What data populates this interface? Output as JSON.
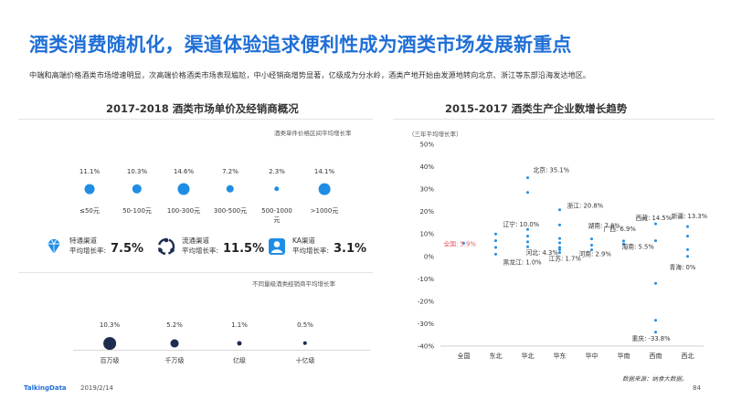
{
  "title": "酒类消费随机化，渠道体验追求便利性成为酒类市场发展新重点",
  "subtitle": "中端和高端价格酒类市场增速明显，次高端价格酒类市场表现尴尬，中小经销商增势显著，亿级成为分水岭，酒类产地开始由发源地转向北京、浙江等东部沿海发达地区。",
  "left_panel": {
    "title": "2017-2018  酒类市场单价及经销商概况",
    "price_label": "酒类单件价格区间平均增长率",
    "dealer_label": "不同量级酒类经销商平均增长率"
  },
  "channels": [
    {
      "name": "特通渠道",
      "rate_label": "平均增长率:",
      "rate": "7.5%",
      "icon": "diamond-icon",
      "color": "#1f8de6"
    },
    {
      "name": "流通渠道",
      "rate_label": "平均增长率:",
      "rate": "11.5%",
      "icon": "cycle-icon",
      "color": "#1d2d50"
    },
    {
      "name": "KA渠道",
      "rate_label": "平均增长率:",
      "rate": "3.1%",
      "icon": "person-icon",
      "color": "#1f8de6"
    }
  ],
  "right_panel": {
    "title": "2015-2017  酒类生产企业数增长趋势",
    "ylabel": "（三年平均增长率）"
  },
  "source": "数据来源：纳食大数据。",
  "footer": {
    "brand": "TalkingData",
    "date": "2019/2/14",
    "page": "84"
  },
  "chart_data": [
    {
      "type": "scatter",
      "title": "酒类单件价格区间平均增长率",
      "categories": [
        "≤50元",
        "50-100元",
        "100-300元",
        "300-500元",
        "500-1000元",
        ">1000元"
      ],
      "category_lines": [
        [
          "≤50元"
        ],
        [
          "50-100元"
        ],
        [
          "100-300元"
        ],
        [
          "300-500元"
        ],
        [
          "500-1000",
          "元"
        ],
        [
          ">1000元"
        ]
      ],
      "values": [
        11.1,
        10.3,
        14.6,
        7.2,
        2.3,
        14.1
      ],
      "labels": [
        "11.1%",
        "10.3%",
        "14.6%",
        "7.2%",
        "2.3%",
        "14.1%"
      ],
      "color": "#1f8de6"
    },
    {
      "type": "scatter",
      "title": "不同量级酒类经销商平均增长率",
      "categories": [
        "百万级",
        "千万级",
        "亿级",
        "十亿级"
      ],
      "values": [
        10.3,
        5.2,
        1.1,
        0.5
      ],
      "labels": [
        "10.3%",
        "5.2%",
        "1.1%",
        "0.5%"
      ],
      "color": "#1d2d50"
    },
    {
      "type": "scatter",
      "title": "2015-2017  酒类生产企业数增长趋势",
      "ylabel": "（三年平均增长率）",
      "ylim": [
        -40,
        50
      ],
      "yticks": [
        -40,
        -30,
        -20,
        -10,
        0,
        10,
        20,
        30,
        40,
        50
      ],
      "ytick_labels": [
        "-40%",
        "-30%",
        "-20%",
        "-10%",
        "0%",
        "10%",
        "20%",
        "30%",
        "40%",
        "50%"
      ],
      "categories": [
        "全国",
        "东北",
        "华北",
        "华东",
        "华中",
        "华南",
        "西南",
        "西北"
      ],
      "points": [
        {
          "x": "全国",
          "y": [
            5.9
          ]
        },
        {
          "x": "东北",
          "y": [
            10.0,
            7.0,
            4.0,
            1.0
          ]
        },
        {
          "x": "华北",
          "y": [
            35.1,
            28.5,
            12.0,
            9.0,
            6.5,
            4.3
          ]
        },
        {
          "x": "华东",
          "y": [
            20.8,
            14.0,
            8.0,
            6.0,
            4.0,
            3.0,
            1.7
          ]
        },
        {
          "x": "华中",
          "y": [
            7.8,
            5.0,
            2.9
          ]
        },
        {
          "x": "华南",
          "y": [
            6.9,
            5.5
          ]
        },
        {
          "x": "西南",
          "y": [
            14.5,
            7.0,
            -12.0,
            -28.5,
            -33.8
          ]
        },
        {
          "x": "西北",
          "y": [
            13.3,
            9.0,
            3.0,
            0.0
          ]
        }
      ],
      "annotations": [
        {
          "text": "全国: 5.9%",
          "x": "全国",
          "y": 5.9,
          "color": "#e05a6a"
        },
        {
          "text": "辽宁: 10.0%",
          "x": "东北",
          "y": 10.0
        },
        {
          "text": "黑龙江: 1.0%",
          "x": "东北",
          "y": 1.0
        },
        {
          "text": "北京: 35.1%",
          "x": "华北",
          "y": 35.1
        },
        {
          "text": "河北: 4.3%",
          "x": "华北",
          "y": 4.3
        },
        {
          "text": "浙江: 20.8%",
          "x": "华东",
          "y": 20.8
        },
        {
          "text": "江苏: 1.7%",
          "x": "华东",
          "y": 1.7
        },
        {
          "text": "湖南: 7.8%",
          "x": "华中",
          "y": 7.8
        },
        {
          "text": "河南: 2.9%",
          "x": "华中",
          "y": 2.9
        },
        {
          "text": "广西: 6.9%",
          "x": "华南",
          "y": 6.9
        },
        {
          "text": "海南: 5.5%",
          "x": "华南",
          "y": 5.5
        },
        {
          "text": "西藏: 14.5%",
          "x": "西南",
          "y": 14.5
        },
        {
          "text": "重庆: -33.8%",
          "x": "西南",
          "y": -33.8
        },
        {
          "text": "新疆: 13.3%",
          "x": "西北",
          "y": 13.3
        },
        {
          "text": "青海: 0%",
          "x": "西北",
          "y": 0.0
        }
      ],
      "color": "#1f8de6"
    }
  ]
}
